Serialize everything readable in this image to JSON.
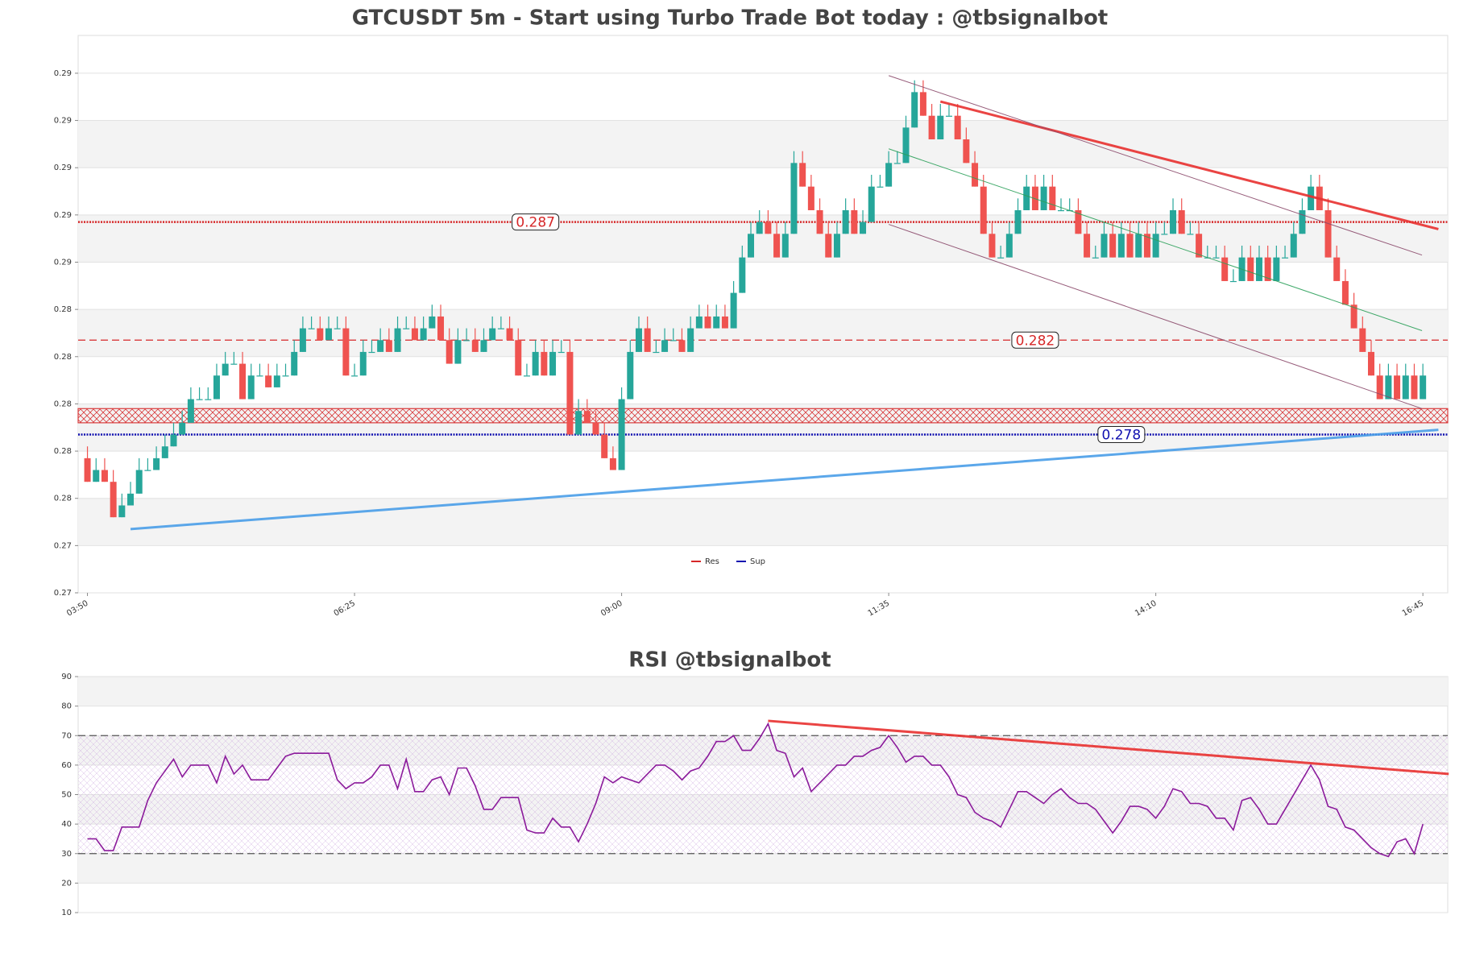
{
  "chart_data": [
    {
      "type": "candlestick",
      "title": "GTCUSDT 5m - Start using Turbo Trade Bot today : @tbsignalbot",
      "x": [
        "03:50",
        null,
        null,
        null,
        null,
        null,
        null,
        null,
        null,
        null,
        null,
        null,
        null,
        null,
        null,
        null,
        null,
        null,
        null,
        null,
        null,
        null,
        null,
        null,
        null,
        null,
        null,
        null,
        null,
        null,
        null,
        "06:25",
        null,
        null,
        null,
        null,
        null,
        null,
        null,
        null,
        null,
        null,
        null,
        null,
        null,
        null,
        null,
        null,
        null,
        null,
        null,
        null,
        null,
        null,
        null,
        null,
        null,
        null,
        null,
        null,
        null,
        null,
        "09:00",
        null,
        null,
        null,
        null,
        null,
        null,
        null,
        null,
        null,
        null,
        null,
        null,
        null,
        null,
        null,
        null,
        null,
        null,
        null,
        null,
        null,
        null,
        null,
        null,
        null,
        null,
        null,
        null,
        null,
        null,
        "11:35",
        null,
        null,
        null,
        null,
        null,
        null,
        null,
        null,
        null,
        null,
        null,
        null,
        null,
        null,
        null,
        null,
        null,
        null,
        null,
        null,
        null,
        null,
        null,
        null,
        null,
        null,
        null,
        null,
        null,
        null,
        "14:10",
        null,
        null,
        null,
        null,
        null,
        null,
        null,
        null,
        null,
        null,
        null,
        null,
        null,
        null,
        null,
        null,
        null,
        null,
        null,
        null,
        null,
        null,
        null,
        null,
        null,
        null,
        null,
        null,
        null,
        null,
        "16:45"
      ],
      "open": [
        0.277,
        0.276,
        0.2765,
        0.276,
        0.2745,
        0.275,
        0.2755,
        0.2765,
        0.2765,
        0.277,
        0.2775,
        0.278,
        0.2785,
        0.2795,
        0.2795,
        0.2795,
        0.2805,
        0.281,
        0.281,
        0.2795,
        0.2805,
        0.2805,
        0.28,
        0.2805,
        0.2805,
        0.2815,
        0.2825,
        0.2825,
        0.282,
        0.2825,
        0.2825,
        0.2805,
        0.2805,
        0.2815,
        0.2815,
        0.282,
        0.2815,
        0.2825,
        0.2825,
        0.282,
        0.2825,
        0.283,
        0.282,
        0.281,
        0.282,
        0.282,
        0.2815,
        0.282,
        0.2825,
        0.2825,
        0.282,
        0.2805,
        0.2805,
        0.2815,
        0.2805,
        0.2815,
        0.2815,
        0.278,
        0.279,
        0.2785,
        0.278,
        0.277,
        0.2765,
        0.2795,
        0.2815,
        0.2825,
        0.2815,
        0.2815,
        0.282,
        0.282,
        0.2815,
        0.2825,
        0.283,
        0.2825,
        0.283,
        0.2825,
        0.284,
        0.2855,
        0.2865,
        0.287,
        0.2865,
        0.2855,
        0.2865,
        0.2895,
        0.2885,
        0.2875,
        0.2865,
        0.2855,
        0.2865,
        0.2875,
        0.2865,
        0.287,
        0.2885,
        0.2885,
        0.2895,
        0.2895,
        0.291,
        0.2925,
        0.2915,
        0.2905,
        0.2915,
        0.2915,
        0.2905,
        0.2895,
        0.2885,
        0.2865,
        0.2855,
        0.2855,
        0.2865,
        0.2875,
        0.2885,
        0.2875,
        0.2885,
        0.2875,
        0.2875,
        0.2875,
        0.2865,
        0.2855,
        0.2855,
        0.2865,
        0.2855,
        0.2865,
        0.2855,
        0.2865,
        0.2855,
        0.2865,
        0.2865,
        0.2875,
        0.2865,
        0.2865,
        0.2855,
        0.2855,
        0.2855,
        0.2845,
        0.2845,
        0.2855,
        0.2845,
        0.2855,
        0.2845,
        0.2855,
        0.2855,
        0.2865,
        0.2875,
        0.2885,
        0.2875,
        0.2855,
        0.2845,
        0.2835,
        0.2825,
        0.2815,
        0.2805,
        0.2795,
        0.2805,
        0.2795,
        0.2805,
        0.2795
      ],
      "high": [
        0.2775,
        0.277,
        0.277,
        0.2765,
        0.2755,
        0.276,
        0.277,
        0.277,
        0.2775,
        0.278,
        0.2785,
        0.279,
        0.28,
        0.28,
        0.28,
        0.281,
        0.2815,
        0.2815,
        0.2815,
        0.281,
        0.281,
        0.281,
        0.281,
        0.281,
        0.282,
        0.283,
        0.283,
        0.283,
        0.283,
        0.283,
        0.283,
        0.281,
        0.282,
        0.282,
        0.2825,
        0.2825,
        0.283,
        0.283,
        0.283,
        0.283,
        0.2835,
        0.2835,
        0.2825,
        0.2825,
        0.2825,
        0.2825,
        0.2825,
        0.283,
        0.283,
        0.283,
        0.2825,
        0.281,
        0.282,
        0.282,
        0.282,
        0.282,
        0.282,
        0.2795,
        0.2795,
        0.279,
        0.2785,
        0.2775,
        0.28,
        0.282,
        0.283,
        0.283,
        0.282,
        0.2825,
        0.2825,
        0.2825,
        0.283,
        0.2835,
        0.2835,
        0.2835,
        0.2835,
        0.2845,
        0.286,
        0.287,
        0.2875,
        0.2875,
        0.287,
        0.287,
        0.29,
        0.29,
        0.289,
        0.288,
        0.287,
        0.287,
        0.288,
        0.288,
        0.2875,
        0.289,
        0.289,
        0.29,
        0.29,
        0.2915,
        0.293,
        0.293,
        0.292,
        0.292,
        0.292,
        0.292,
        0.291,
        0.29,
        0.289,
        0.287,
        0.286,
        0.287,
        0.288,
        0.289,
        0.289,
        0.289,
        0.289,
        0.288,
        0.288,
        0.288,
        0.287,
        0.286,
        0.287,
        0.287,
        0.287,
        0.287,
        0.287,
        0.287,
        0.287,
        0.287,
        0.288,
        0.288,
        0.287,
        0.287,
        0.286,
        0.286,
        0.286,
        0.285,
        0.286,
        0.286,
        0.286,
        0.286,
        0.286,
        0.286,
        0.287,
        0.288,
        0.289,
        0.289,
        0.288,
        0.286,
        0.285,
        0.284,
        0.283,
        0.282,
        0.281,
        0.281,
        0.281,
        0.281,
        0.281,
        0.281
      ],
      "low": [
        0.276,
        0.276,
        0.276,
        0.2745,
        0.2745,
        0.275,
        0.2755,
        0.2765,
        0.2765,
        0.277,
        0.2775,
        0.278,
        0.2785,
        0.2795,
        0.2795,
        0.2795,
        0.2805,
        0.281,
        0.2795,
        0.2795,
        0.2805,
        0.28,
        0.28,
        0.2805,
        0.2805,
        0.2815,
        0.2825,
        0.282,
        0.282,
        0.2825,
        0.2805,
        0.2805,
        0.2805,
        0.2815,
        0.2815,
        0.2815,
        0.2815,
        0.2825,
        0.282,
        0.282,
        0.2825,
        0.282,
        0.281,
        0.281,
        0.282,
        0.2815,
        0.2815,
        0.282,
        0.2825,
        0.282,
        0.2805,
        0.2805,
        0.2805,
        0.2805,
        0.2805,
        0.2815,
        0.278,
        0.278,
        0.2785,
        0.278,
        0.277,
        0.2765,
        0.2765,
        0.2795,
        0.2815,
        0.2815,
        0.2815,
        0.2815,
        0.282,
        0.2815,
        0.2815,
        0.2825,
        0.2825,
        0.2825,
        0.2825,
        0.2825,
        0.284,
        0.2855,
        0.2865,
        0.2865,
        0.2855,
        0.2855,
        0.2865,
        0.2885,
        0.2875,
        0.2865,
        0.2855,
        0.2855,
        0.2865,
        0.2865,
        0.2865,
        0.287,
        0.2885,
        0.2885,
        0.2895,
        0.2895,
        0.291,
        0.2915,
        0.2905,
        0.2905,
        0.2915,
        0.2905,
        0.2895,
        0.2885,
        0.2865,
        0.2855,
        0.2855,
        0.2855,
        0.2865,
        0.2875,
        0.2875,
        0.2875,
        0.2875,
        0.2875,
        0.2875,
        0.2865,
        0.2855,
        0.2855,
        0.2855,
        0.2855,
        0.2855,
        0.2855,
        0.2855,
        0.2855,
        0.2855,
        0.2865,
        0.2865,
        0.2865,
        0.2865,
        0.2855,
        0.2855,
        0.2855,
        0.2845,
        0.2845,
        0.2845,
        0.2845,
        0.2845,
        0.2845,
        0.2845,
        0.2855,
        0.2855,
        0.2865,
        0.2875,
        0.2875,
        0.2855,
        0.2845,
        0.2835,
        0.2825,
        0.2815,
        0.2805,
        0.2795,
        0.2795,
        0.2795,
        0.2795,
        0.2795,
        0.2795
      ],
      "close": [
        0.276,
        0.2765,
        0.276,
        0.2745,
        0.275,
        0.2755,
        0.2765,
        0.2765,
        0.277,
        0.2775,
        0.278,
        0.2785,
        0.2795,
        0.2795,
        0.2795,
        0.2805,
        0.281,
        0.281,
        0.2795,
        0.2805,
        0.2805,
        0.28,
        0.2805,
        0.2805,
        0.2815,
        0.2825,
        0.2825,
        0.282,
        0.2825,
        0.2825,
        0.2805,
        0.2805,
        0.2815,
        0.2815,
        0.282,
        0.2815,
        0.2825,
        0.2825,
        0.282,
        0.2825,
        0.283,
        0.282,
        0.281,
        0.282,
        0.282,
        0.2815,
        0.282,
        0.2825,
        0.2825,
        0.282,
        0.2805,
        0.2805,
        0.2815,
        0.2805,
        0.2815,
        0.2815,
        0.278,
        0.279,
        0.2785,
        0.278,
        0.277,
        0.2765,
        0.2795,
        0.2815,
        0.2825,
        0.2815,
        0.2815,
        0.282,
        0.282,
        0.2815,
        0.2825,
        0.283,
        0.2825,
        0.283,
        0.2825,
        0.284,
        0.2855,
        0.2865,
        0.287,
        0.2865,
        0.2855,
        0.2865,
        0.2895,
        0.2885,
        0.2875,
        0.2865,
        0.2855,
        0.2865,
        0.2875,
        0.2865,
        0.287,
        0.2885,
        0.2885,
        0.2895,
        0.2895,
        0.291,
        0.2925,
        0.2915,
        0.2905,
        0.2915,
        0.2915,
        0.2905,
        0.2895,
        0.2885,
        0.2865,
        0.2855,
        0.2855,
        0.2865,
        0.2875,
        0.2885,
        0.2875,
        0.2885,
        0.2875,
        0.2875,
        0.2875,
        0.2865,
        0.2855,
        0.2855,
        0.2865,
        0.2855,
        0.2865,
        0.2855,
        0.2865,
        0.2855,
        0.2865,
        0.2865,
        0.2875,
        0.2865,
        0.2865,
        0.2855,
        0.2855,
        0.2855,
        0.2845,
        0.2845,
        0.2855,
        0.2845,
        0.2855,
        0.2845,
        0.2855,
        0.2855,
        0.2865,
        0.2875,
        0.2885,
        0.2875,
        0.2855,
        0.2845,
        0.2835,
        0.2825,
        0.2815,
        0.2805,
        0.2795,
        0.2805,
        0.2795,
        0.2805,
        0.2795,
        0.2805
      ],
      "up_color": "#26a69a",
      "down_color": "#ef5350",
      "ylim": [
        0.2713,
        0.2949
      ],
      "yticks": [
        {
          "value": 0.2713,
          "label": "0.27"
        },
        {
          "value": 0.2733,
          "label": "0.27"
        },
        {
          "value": 0.2753,
          "label": "0.28"
        },
        {
          "value": 0.2773,
          "label": "0.28"
        },
        {
          "value": 0.2793,
          "label": "0.28"
        },
        {
          "value": 0.2813,
          "label": "0.28"
        },
        {
          "value": 0.2833,
          "label": "0.28"
        },
        {
          "value": 0.2853,
          "label": "0.29"
        },
        {
          "value": 0.2873,
          "label": "0.29"
        },
        {
          "value": 0.2893,
          "label": "0.29"
        },
        {
          "value": 0.2913,
          "label": "0.29"
        },
        {
          "value": 0.2933,
          "label": "0.29"
        }
      ],
      "grid": true,
      "zones": [
        {
          "range": [
            0.2785,
            0.2791
          ],
          "color": "#d62728"
        }
      ],
      "levels": [
        {
          "value": 0.287,
          "color": "#d62728",
          "style": "dotted"
        },
        {
          "value": 0.282,
          "color": "#d62728",
          "style": "dashed"
        },
        {
          "value": 0.278,
          "color": "#1010b0",
          "style": "dotted"
        }
      ],
      "trendlines": [
        {
          "points": [
            [
              99,
              0.2921
            ],
            [
              156.8,
              0.2867
            ]
          ],
          "color": "#e8302f",
          "width": 3
        },
        {
          "points": [
            [
              5,
              0.274
            ],
            [
              156.8,
              0.2782
            ]
          ],
          "color": "#4a9ee8",
          "width": 3
        },
        {
          "points": [
            [
              93,
              0.2932
            ],
            [
              154.9,
              0.2856
            ]
          ],
          "color": "#8b4a6b",
          "width": 1
        },
        {
          "points": [
            [
              93,
              0.2901
            ],
            [
              154.9,
              0.2824
            ]
          ],
          "color": "#2ca05a",
          "width": 1
        },
        {
          "points": [
            [
              93,
              0.2869
            ],
            [
              154.9,
              0.2791
            ]
          ],
          "color": "#8b4a6b",
          "width": 1
        }
      ],
      "legend": [
        {
          "name": "Res",
          "color": "#d62728"
        },
        {
          "name": "Sup",
          "color": "#1010b0"
        }
      ]
    },
    {
      "type": "line",
      "title": "RSI @tbsignalbot",
      "values": [
        35,
        35,
        31,
        31,
        39,
        39,
        39,
        48,
        54,
        58,
        62,
        56,
        60,
        60,
        60,
        54,
        63,
        57,
        60,
        55,
        55,
        55,
        59,
        63,
        64,
        64,
        64,
        64,
        64,
        55,
        52,
        54,
        54,
        56,
        60,
        60,
        52,
        62,
        51,
        51,
        55,
        56,
        50,
        59,
        59,
        53,
        45,
        45,
        49,
        49,
        49,
        38,
        37,
        37,
        42,
        39,
        39,
        34,
        40,
        47,
        56,
        54,
        56,
        55,
        54,
        57,
        60,
        60,
        58,
        55,
        58,
        59,
        63,
        68,
        68,
        70,
        65,
        65,
        69,
        74,
        65,
        64,
        56,
        59,
        51,
        54,
        57,
        60,
        60,
        63,
        63,
        65,
        66,
        70,
        66,
        61,
        63,
        63,
        60,
        60,
        56,
        50,
        49,
        44,
        42,
        41,
        39,
        45,
        51,
        51,
        49,
        47,
        50,
        52,
        49,
        47,
        47,
        45,
        41,
        37,
        41,
        46,
        46,
        45,
        42,
        46,
        52,
        51,
        47,
        47,
        46,
        42,
        42,
        38,
        48,
        49,
        45,
        40,
        40,
        45,
        50,
        55,
        60,
        55,
        46,
        45,
        39,
        38,
        35,
        32,
        30,
        29,
        34,
        35,
        30,
        40
      ],
      "color": "#8b1a9b",
      "ylim": [
        10,
        90
      ],
      "yticks": [
        10,
        20,
        30,
        40,
        50,
        60,
        70,
        80,
        90
      ],
      "grid": true,
      "zones": [
        {
          "range": [
            30,
            70
          ],
          "color": "#c9a0dc"
        }
      ],
      "levels": [
        {
          "value": 70,
          "color": "#555555",
          "style": "dashed"
        },
        {
          "value": 30,
          "color": "#555555",
          "style": "dashed"
        }
      ],
      "trendlines": [
        {
          "points": [
            [
              79,
              75
            ],
            [
              158,
              57
            ]
          ],
          "color": "#e8302f",
          "width": 3
        }
      ]
    }
  ]
}
